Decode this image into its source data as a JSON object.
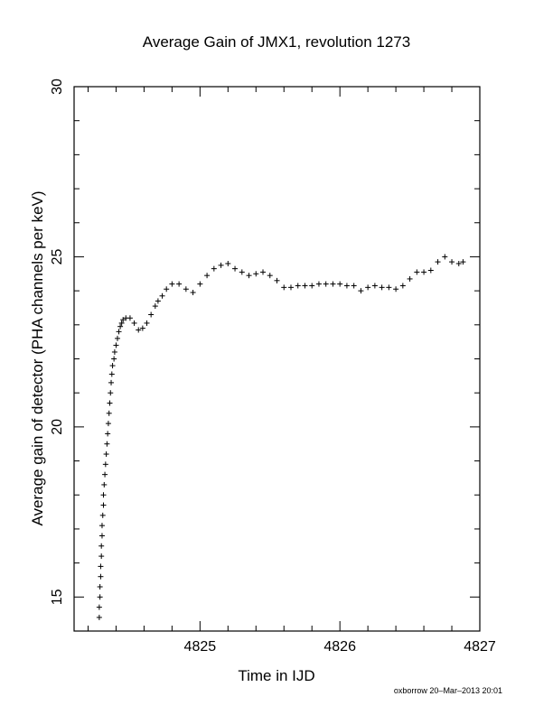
{
  "chart_data": {
    "type": "scatter",
    "marker": "plus",
    "title": "Average Gain of JMX1, revolution 1273",
    "xlabel": "Time in IJD",
    "ylabel": "Average gain of detector (PHA channels per keV)",
    "xlim": [
      4824.1,
      4827.0
    ],
    "ylim": [
      14.0,
      30.0
    ],
    "xticks": [
      4825,
      4826,
      4827
    ],
    "xtick_labels": [
      "4825",
      "4826",
      "4827"
    ],
    "yticks": [
      15,
      20,
      25,
      30
    ],
    "ytick_labels": [
      "15",
      "20",
      "25",
      "30"
    ],
    "grid": false,
    "legend": "none",
    "series": [
      {
        "color": "#000000",
        "points": [
          [
            4824.28,
            14.4
          ],
          [
            4824.28,
            14.7
          ],
          [
            4824.285,
            15.0
          ],
          [
            4824.285,
            15.3
          ],
          [
            4824.29,
            15.6
          ],
          [
            4824.29,
            15.9
          ],
          [
            4824.295,
            16.2
          ],
          [
            4824.295,
            16.5
          ],
          [
            4824.3,
            16.8
          ],
          [
            4824.3,
            17.1
          ],
          [
            4824.305,
            17.4
          ],
          [
            4824.31,
            17.7
          ],
          [
            4824.31,
            18.0
          ],
          [
            4824.315,
            18.3
          ],
          [
            4824.32,
            18.6
          ],
          [
            4824.325,
            18.9
          ],
          [
            4824.33,
            19.2
          ],
          [
            4824.335,
            19.5
          ],
          [
            4824.34,
            19.8
          ],
          [
            4824.345,
            20.1
          ],
          [
            4824.35,
            20.4
          ],
          [
            4824.355,
            20.7
          ],
          [
            4824.36,
            21.0
          ],
          [
            4824.365,
            21.3
          ],
          [
            4824.37,
            21.55
          ],
          [
            4824.375,
            21.8
          ],
          [
            4824.385,
            22.0
          ],
          [
            4824.39,
            22.2
          ],
          [
            4824.4,
            22.4
          ],
          [
            4824.41,
            22.6
          ],
          [
            4824.42,
            22.8
          ],
          [
            4824.43,
            22.95
          ],
          [
            4824.44,
            23.05
          ],
          [
            4824.45,
            23.15
          ],
          [
            4824.47,
            23.2
          ],
          [
            4824.5,
            23.2
          ],
          [
            4824.53,
            23.05
          ],
          [
            4824.56,
            22.85
          ],
          [
            4824.59,
            22.9
          ],
          [
            4824.62,
            23.05
          ],
          [
            4824.65,
            23.3
          ],
          [
            4824.68,
            23.55
          ],
          [
            4824.7,
            23.7
          ],
          [
            4824.73,
            23.85
          ],
          [
            4824.76,
            24.05
          ],
          [
            4824.8,
            24.2
          ],
          [
            4824.85,
            24.2
          ],
          [
            4824.9,
            24.05
          ],
          [
            4824.95,
            23.95
          ],
          [
            4825.0,
            24.2
          ],
          [
            4825.05,
            24.45
          ],
          [
            4825.1,
            24.65
          ],
          [
            4825.15,
            24.75
          ],
          [
            4825.2,
            24.8
          ],
          [
            4825.25,
            24.65
          ],
          [
            4825.3,
            24.55
          ],
          [
            4825.35,
            24.45
          ],
          [
            4825.4,
            24.5
          ],
          [
            4825.45,
            24.55
          ],
          [
            4825.5,
            24.45
          ],
          [
            4825.55,
            24.3
          ],
          [
            4825.6,
            24.1
          ],
          [
            4825.65,
            24.1
          ],
          [
            4825.7,
            24.15
          ],
          [
            4825.75,
            24.15
          ],
          [
            4825.8,
            24.15
          ],
          [
            4825.85,
            24.2
          ],
          [
            4825.9,
            24.2
          ],
          [
            4825.95,
            24.2
          ],
          [
            4826.0,
            24.2
          ],
          [
            4826.05,
            24.15
          ],
          [
            4826.1,
            24.15
          ],
          [
            4826.15,
            24.0
          ],
          [
            4826.2,
            24.1
          ],
          [
            4826.25,
            24.15
          ],
          [
            4826.3,
            24.1
          ],
          [
            4826.35,
            24.1
          ],
          [
            4826.4,
            24.05
          ],
          [
            4826.45,
            24.15
          ],
          [
            4826.5,
            24.35
          ],
          [
            4826.55,
            24.55
          ],
          [
            4826.6,
            24.55
          ],
          [
            4826.65,
            24.6
          ],
          [
            4826.7,
            24.85
          ],
          [
            4826.75,
            25.0
          ],
          [
            4826.8,
            24.85
          ],
          [
            4826.85,
            24.8
          ],
          [
            4826.88,
            24.85
          ]
        ]
      }
    ]
  },
  "footer": {
    "credit": "oxborrow 20–Mar–2013 20:01"
  }
}
